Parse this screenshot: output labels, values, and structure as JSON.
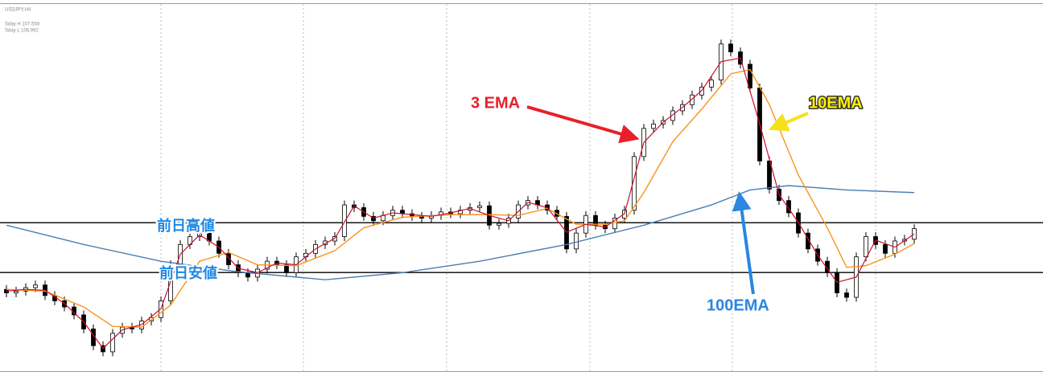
{
  "chart_data": {
    "type": "candlestick",
    "title": "USDJPY,H4",
    "info": [
      "Sday H 107.558",
      "Sday L 106.992"
    ],
    "ylim": [
      105.87,
      110.09
    ],
    "open": [
      106.8,
      106.76,
      106.78,
      106.82,
      106.85,
      106.73,
      106.67,
      106.6,
      106.51,
      106.35,
      106.16,
      106.09,
      106.3,
      106.37,
      106.35,
      106.44,
      106.48,
      106.67,
      107.08,
      107.31,
      107.4,
      107.44,
      107.35,
      107.21,
      107.08,
      106.99,
      106.94,
      107.03,
      107.12,
      107.08,
      106.99,
      107.17,
      107.21,
      107.31,
      107.35,
      107.4,
      107.76,
      107.73,
      107.63,
      107.58,
      107.64,
      107.7,
      107.66,
      107.63,
      107.61,
      107.64,
      107.68,
      107.66,
      107.7,
      107.73,
      107.75,
      107.53,
      107.55,
      107.61,
      107.76,
      107.81,
      107.76,
      107.7,
      107.63,
      107.26,
      107.44,
      107.64,
      107.53,
      107.49,
      107.61,
      107.7,
      108.31,
      108.63,
      108.68,
      108.72,
      108.83,
      108.9,
      109.01,
      109.1,
      109.18,
      109.59,
      109.5,
      109.36,
      109.09,
      108.26,
      107.94,
      107.81,
      107.67,
      107.44,
      107.26,
      107.12,
      106.99,
      106.76,
      106.71,
      107.17,
      107.4,
      107.31,
      107.21,
      107.35,
      107.37
    ],
    "high": [
      106.85,
      106.83,
      106.87,
      106.9,
      106.9,
      106.78,
      106.72,
      106.65,
      106.56,
      106.4,
      106.21,
      106.35,
      106.42,
      106.42,
      106.49,
      106.53,
      106.72,
      107.13,
      107.36,
      107.45,
      107.49,
      107.49,
      107.4,
      107.26,
      107.13,
      107.04,
      107.08,
      107.17,
      107.17,
      107.13,
      107.22,
      107.26,
      107.36,
      107.4,
      107.45,
      107.81,
      107.81,
      107.78,
      107.68,
      107.69,
      107.75,
      107.75,
      107.71,
      107.68,
      107.69,
      107.73,
      107.73,
      107.75,
      107.78,
      107.8,
      107.8,
      107.6,
      107.66,
      107.81,
      107.86,
      107.86,
      107.81,
      107.75,
      107.68,
      107.49,
      107.69,
      107.69,
      107.58,
      107.66,
      107.75,
      108.36,
      108.68,
      108.73,
      108.77,
      108.88,
      108.95,
      109.06,
      109.15,
      109.23,
      109.64,
      109.64,
      109.55,
      109.41,
      109.14,
      108.31,
      107.99,
      107.86,
      107.72,
      107.49,
      107.31,
      107.17,
      107.04,
      106.81,
      107.22,
      107.45,
      107.45,
      107.36,
      107.4,
      107.42,
      107.54
    ],
    "low": [
      106.71,
      106.71,
      106.73,
      106.77,
      106.68,
      106.62,
      106.55,
      106.46,
      106.3,
      106.11,
      106.04,
      106.04,
      106.25,
      106.3,
      106.3,
      106.39,
      106.43,
      106.62,
      107.03,
      107.26,
      107.35,
      107.3,
      107.16,
      107.03,
      106.94,
      106.89,
      106.89,
      106.98,
      107.03,
      106.94,
      106.94,
      107.12,
      107.16,
      107.26,
      107.3,
      107.35,
      107.68,
      107.58,
      107.53,
      107.53,
      107.59,
      107.61,
      107.58,
      107.56,
      107.56,
      107.59,
      107.61,
      107.61,
      107.65,
      107.68,
      107.48,
      107.48,
      107.5,
      107.56,
      107.71,
      107.71,
      107.65,
      107.58,
      107.21,
      107.21,
      107.39,
      107.48,
      107.44,
      107.44,
      107.56,
      107.65,
      108.26,
      108.58,
      108.63,
      108.67,
      108.78,
      108.85,
      108.96,
      109.05,
      109.13,
      109.45,
      109.31,
      109.04,
      108.21,
      107.89,
      107.76,
      107.62,
      107.39,
      107.21,
      107.07,
      106.94,
      106.71,
      106.66,
      106.66,
      107.12,
      107.26,
      107.16,
      107.16,
      107.3,
      107.32
    ],
    "close": [
      106.76,
      106.78,
      106.82,
      106.85,
      106.73,
      106.67,
      106.6,
      106.51,
      106.35,
      106.16,
      106.09,
      106.3,
      106.37,
      106.35,
      106.44,
      106.48,
      106.67,
      107.08,
      107.31,
      107.4,
      107.44,
      107.35,
      107.21,
      107.08,
      106.99,
      106.94,
      107.03,
      107.12,
      107.08,
      106.99,
      107.17,
      107.21,
      107.31,
      107.35,
      107.4,
      107.76,
      107.73,
      107.63,
      107.58,
      107.64,
      107.7,
      107.66,
      107.63,
      107.61,
      107.64,
      107.68,
      107.66,
      107.7,
      107.73,
      107.75,
      107.53,
      107.55,
      107.61,
      107.76,
      107.81,
      107.76,
      107.7,
      107.63,
      107.26,
      107.44,
      107.64,
      107.53,
      107.49,
      107.61,
      107.7,
      108.31,
      108.63,
      108.68,
      108.72,
      108.83,
      108.9,
      109.01,
      109.1,
      109.18,
      109.59,
      109.5,
      109.36,
      109.09,
      108.26,
      107.94,
      107.81,
      107.67,
      107.44,
      107.26,
      107.12,
      106.99,
      106.76,
      106.71,
      107.17,
      107.4,
      107.31,
      107.21,
      107.35,
      107.37,
      107.49
    ],
    "levels": [
      {
        "value": 107.558,
        "label": "前日高値"
      },
      {
        "value": 106.992,
        "label": "前日安値"
      }
    ],
    "lines": [
      {
        "name": "3 EMA",
        "color": "#c8102e",
        "x": [
          0,
          2,
          4,
          6,
          8,
          10,
          12,
          14,
          16,
          18,
          20,
          22,
          24,
          26,
          28,
          30,
          32,
          34,
          36,
          38,
          40,
          42,
          44,
          46,
          48,
          50,
          52,
          54,
          56,
          58,
          60,
          62,
          64,
          66,
          68,
          70,
          72,
          74,
          76,
          78,
          80,
          82,
          84,
          86,
          88,
          90,
          92,
          94
        ],
        "values": [
          106.78,
          106.8,
          106.79,
          106.64,
          106.43,
          106.13,
          106.34,
          106.4,
          106.58,
          107.2,
          107.42,
          107.28,
          107.04,
          106.99,
          107.1,
          107.08,
          107.26,
          107.38,
          107.75,
          107.61,
          107.67,
          107.65,
          107.63,
          107.67,
          107.72,
          107.64,
          107.58,
          107.79,
          107.73,
          107.45,
          107.54,
          107.51,
          107.66,
          108.47,
          108.7,
          108.87,
          109.06,
          109.39,
          109.43,
          108.68,
          107.88,
          107.56,
          107.19,
          106.88,
          106.94,
          107.36,
          107.28,
          107.43
        ]
      },
      {
        "name": "10EMA",
        "color": "#f7941d",
        "x": [
          0,
          4,
          8,
          11,
          14,
          17,
          20,
          23,
          26,
          30,
          34,
          37,
          41,
          46,
          50,
          53,
          56,
          59,
          62,
          64,
          66,
          69,
          72,
          75,
          77,
          79,
          82,
          85,
          87,
          89,
          92,
          94
        ],
        "values": [
          106.8,
          106.78,
          106.6,
          106.38,
          106.37,
          106.62,
          107.12,
          107.22,
          107.08,
          107.07,
          107.24,
          107.5,
          107.62,
          107.65,
          107.65,
          107.64,
          107.72,
          107.54,
          107.54,
          107.58,
          107.9,
          108.48,
          108.85,
          109.25,
          109.3,
          108.9,
          108.1,
          107.5,
          107.05,
          107.07,
          107.2,
          107.32
        ]
      },
      {
        "name": "100EMA",
        "color": "#4a7eb0",
        "x": [
          0,
          8,
          16,
          24,
          33,
          41,
          49,
          58,
          66,
          73,
          77,
          81,
          87,
          94
        ],
        "values": [
          107.53,
          107.31,
          107.12,
          107.0,
          106.91,
          106.99,
          107.12,
          107.31,
          107.53,
          107.76,
          107.93,
          107.98,
          107.93,
          107.9
        ]
      }
    ]
  }
}
